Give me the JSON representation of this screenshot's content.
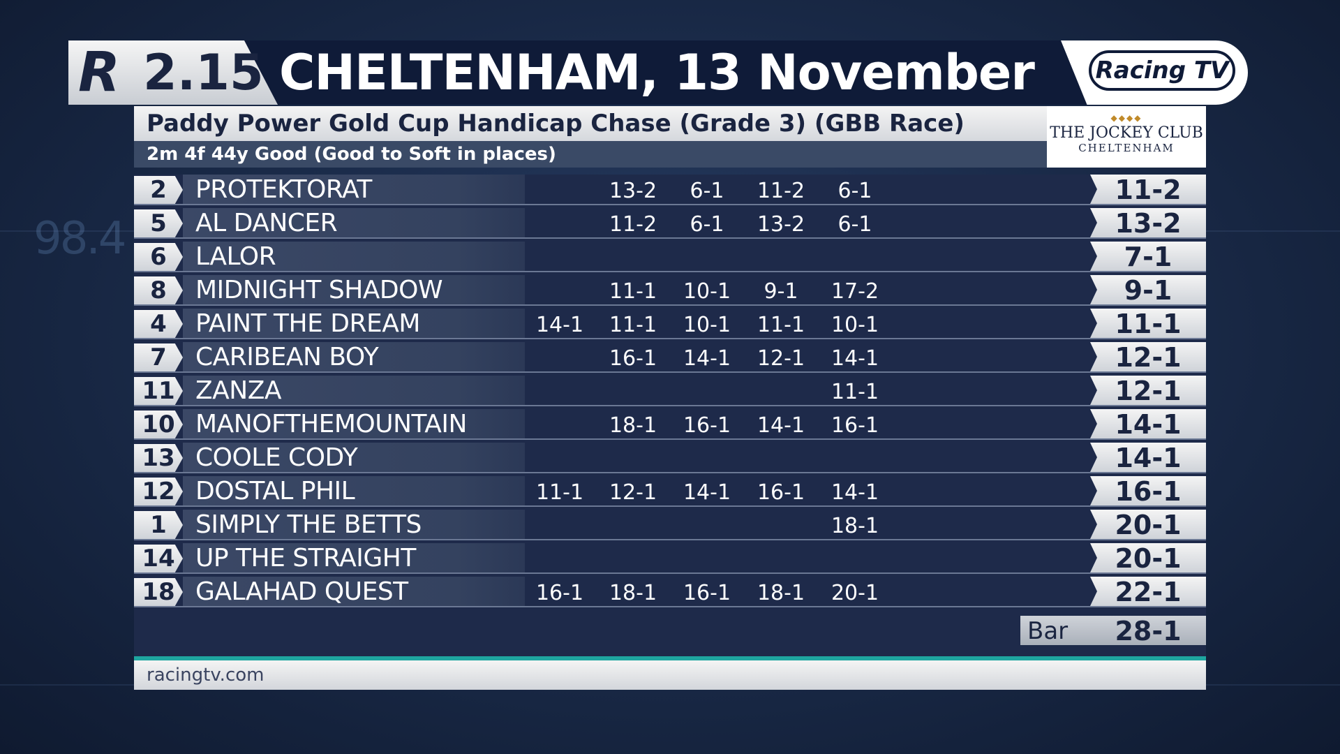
{
  "header": {
    "logo_letter": "R",
    "race_time": "2.15",
    "title": "CHELTENHAM, 13 November",
    "brand": "Racing TV"
  },
  "race": {
    "name": "Paddy Power Gold Cup Handicap Chase (Grade 3) (GBB Race)",
    "details": "2m 4f 44y   Good (Good to Soft in places)"
  },
  "sponsor": {
    "dots": "◆◆◆◆",
    "name": "THE JOCKEY CLUB",
    "sub": "CHELTENHAM"
  },
  "runners": [
    {
      "num": "2",
      "name": "PROTEKTORAT",
      "prices": [
        "",
        "13-2",
        "6-1",
        "11-2",
        "6-1"
      ],
      "current": "11-2"
    },
    {
      "num": "5",
      "name": "AL DANCER",
      "prices": [
        "",
        "11-2",
        "6-1",
        "13-2",
        "6-1"
      ],
      "current": "13-2"
    },
    {
      "num": "6",
      "name": "LALOR",
      "prices": [
        "",
        "",
        "",
        "",
        ""
      ],
      "current": "7-1"
    },
    {
      "num": "8",
      "name": "MIDNIGHT SHADOW",
      "prices": [
        "",
        "11-1",
        "10-1",
        "9-1",
        "17-2"
      ],
      "current": "9-1"
    },
    {
      "num": "4",
      "name": "PAINT THE DREAM",
      "prices": [
        "14-1",
        "11-1",
        "10-1",
        "11-1",
        "10-1"
      ],
      "current": "11-1"
    },
    {
      "num": "7",
      "name": "CARIBEAN BOY",
      "prices": [
        "",
        "16-1",
        "14-1",
        "12-1",
        "14-1"
      ],
      "current": "12-1"
    },
    {
      "num": "11",
      "name": "ZANZA",
      "prices": [
        "",
        "",
        "",
        "",
        "11-1"
      ],
      "current": "12-1"
    },
    {
      "num": "10",
      "name": "MANOFTHEMOUNTAIN",
      "prices": [
        "",
        "18-1",
        "16-1",
        "14-1",
        "16-1"
      ],
      "current": "14-1"
    },
    {
      "num": "13",
      "name": "COOLE CODY",
      "prices": [
        "",
        "",
        "",
        "",
        ""
      ],
      "current": "14-1"
    },
    {
      "num": "12",
      "name": "DOSTAL PHIL",
      "prices": [
        "11-1",
        "12-1",
        "14-1",
        "16-1",
        "14-1"
      ],
      "current": "16-1"
    },
    {
      "num": "1",
      "name": "SIMPLY THE BETTS",
      "prices": [
        "",
        "",
        "",
        "",
        "18-1"
      ],
      "current": "20-1"
    },
    {
      "num": "14",
      "name": "UP THE STRAIGHT",
      "prices": [
        "",
        "",
        "",
        "",
        ""
      ],
      "current": "20-1"
    },
    {
      "num": "18",
      "name": "GALAHAD QUEST",
      "prices": [
        "16-1",
        "18-1",
        "16-1",
        "18-1",
        "20-1"
      ],
      "current": "22-1"
    }
  ],
  "bar": {
    "label": "Bar",
    "price": "28-1"
  },
  "footer": {
    "url": "racingtv.com"
  },
  "background": {
    "number": "98.4"
  },
  "colors": {
    "panel": "#1e2a4a",
    "header": "#0f1b38",
    "accent": "#1fa6a0"
  }
}
